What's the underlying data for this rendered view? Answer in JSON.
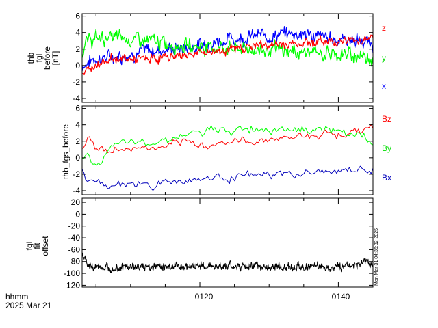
{
  "figure": {
    "time_label": "hhmm",
    "date_label": "2025 Mar 21",
    "x_ticks": [
      "0120",
      "0140"
    ],
    "x_tick_values": [
      20,
      40
    ],
    "x_minor_step": 5,
    "xlim": [
      3,
      45
    ],
    "timestamp": "Mon Mar 31 04:35:32 2025"
  },
  "chart_data": [
    {
      "type": "line",
      "ylabel": [
        "thb",
        "fgl",
        "before",
        "[nT]"
      ],
      "ylim": [
        -4.5,
        6.3
      ],
      "y_ticks": [
        -4,
        -2,
        0,
        2,
        4,
        6
      ],
      "series": [
        {
          "name": "x",
          "color": "#0000ff",
          "x": [
            3,
            4,
            5,
            7,
            9,
            11,
            13,
            15,
            17,
            19,
            21,
            23,
            25,
            27,
            29,
            31,
            33,
            34,
            35,
            37,
            39,
            41,
            43,
            45
          ],
          "y": [
            0.0,
            0.5,
            0.8,
            1.0,
            1.3,
            1.6,
            1.8,
            2.0,
            2.1,
            2.3,
            2.7,
            3.0,
            3.3,
            3.5,
            3.6,
            3.7,
            3.9,
            4.0,
            3.8,
            3.5,
            3.3,
            3.2,
            3.0,
            2.5
          ],
          "noise": 0.8
        },
        {
          "name": "y",
          "color": "#00ff00",
          "x": [
            3,
            4,
            5,
            7,
            9,
            11,
            13,
            15,
            17,
            19,
            21,
            23,
            25,
            27,
            29,
            31,
            33,
            35,
            37,
            39,
            41,
            43,
            45
          ],
          "y": [
            1.8,
            3.0,
            3.3,
            3.4,
            3.3,
            3.1,
            2.9,
            2.7,
            2.5,
            2.4,
            2.3,
            2.2,
            2.1,
            2.0,
            1.9,
            1.8,
            1.7,
            1.6,
            1.5,
            1.4,
            1.3,
            1.2,
            1.0
          ],
          "noise": 0.8
        },
        {
          "name": "z",
          "color": "#ff0000",
          "x": [
            3,
            4,
            5,
            7,
            9,
            11,
            13,
            15,
            17,
            19,
            21,
            23,
            25,
            27,
            29,
            31,
            33,
            35,
            37,
            39,
            41,
            43,
            45
          ],
          "y": [
            -1.0,
            -0.6,
            0.3,
            0.8,
            0.8,
            0.7,
            0.8,
            1.0,
            1.2,
            1.4,
            1.6,
            1.8,
            2.0,
            2.3,
            2.5,
            2.5,
            2.6,
            2.8,
            2.9,
            3.0,
            3.0,
            3.1,
            3.5
          ],
          "noise": 0.5
        }
      ],
      "legend_placement": "right"
    },
    {
      "type": "line",
      "ylabel": [
        "thb_fgs_before"
      ],
      "ylim": [
        -4.5,
        6.3
      ],
      "y_ticks": [
        -4,
        -2,
        0,
        2,
        4,
        6
      ],
      "series": [
        {
          "name": "Bz",
          "color": "#ff0000",
          "x": [
            3,
            4,
            5,
            7,
            9,
            11,
            13,
            15,
            17,
            19,
            21,
            23,
            25,
            27,
            29,
            31,
            33,
            35,
            37,
            39,
            41,
            43,
            45
          ],
          "y": [
            1.5,
            2.5,
            1.0,
            0.8,
            1.0,
            1.2,
            1.1,
            1.3,
            1.5,
            1.7,
            1.6,
            1.8,
            2.0,
            1.9,
            2.2,
            2.4,
            2.5,
            2.7,
            2.9,
            3.0,
            3.0,
            3.1,
            3.8
          ],
          "noise": 0.5
        },
        {
          "name": "By",
          "color": "#00ff00",
          "x": [
            3,
            4,
            5,
            7,
            9,
            11,
            13,
            15,
            17,
            19,
            21,
            23,
            25,
            27,
            29,
            31,
            33,
            35,
            37,
            39,
            41,
            43,
            45
          ],
          "y": [
            0.3,
            0.0,
            -0.8,
            1.0,
            1.6,
            1.8,
            2.0,
            2.3,
            2.6,
            2.9,
            3.1,
            3.3,
            3.4,
            3.5,
            3.6,
            3.7,
            3.6,
            3.5,
            3.4,
            3.3,
            3.2,
            2.6,
            1.8
          ],
          "noise": 0.5
        },
        {
          "name": "Bx",
          "color": "#0000bb",
          "x": [
            3,
            4,
            5,
            7,
            9,
            11,
            13,
            15,
            17,
            19,
            21,
            23,
            25,
            27,
            29,
            31,
            33,
            35,
            37,
            39,
            41,
            43,
            45
          ],
          "y": [
            -1.5,
            -3.0,
            -3.2,
            -3.3,
            -3.2,
            -3.2,
            -3.3,
            -3.0,
            -2.8,
            -2.6,
            -2.5,
            -2.4,
            -2.3,
            -2.2,
            -2.2,
            -2.1,
            -2.0,
            -1.9,
            -1.8,
            -1.7,
            -1.6,
            -1.5,
            -1.4
          ],
          "noise": 0.45
        }
      ],
      "legend_placement": "right"
    },
    {
      "type": "line",
      "ylabel": [
        "fgl",
        "fit",
        "offset"
      ],
      "ylim": [
        -123,
        27
      ],
      "y_ticks": [
        -120,
        -100,
        -80,
        -60,
        -40,
        -20,
        0,
        20
      ],
      "series": [
        {
          "color": "#000000",
          "x": [
            3,
            4,
            6,
            10,
            15,
            20,
            25,
            30,
            35,
            40,
            43,
            44,
            45
          ],
          "y": [
            -70,
            -88,
            -90,
            -89,
            -88,
            -87,
            -88,
            -89,
            -89,
            -88,
            -85,
            -78,
            -85
          ],
          "noise": 6
        }
      ]
    }
  ]
}
